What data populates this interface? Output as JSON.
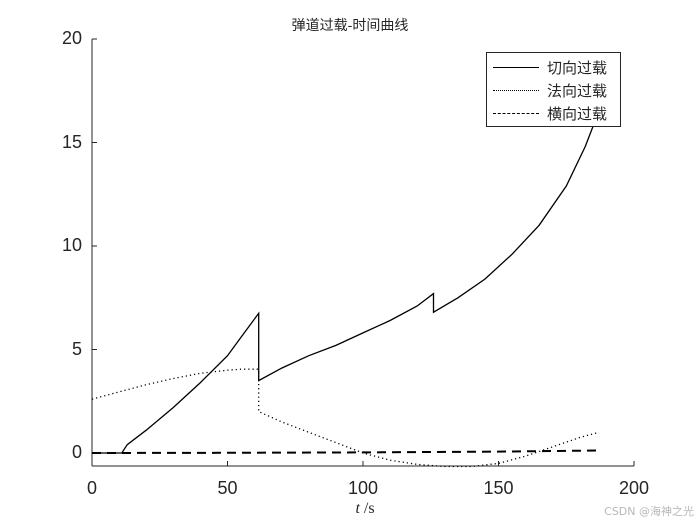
{
  "title": "弹道过载-时间曲线",
  "xlabel": {
    "var": "t",
    "unit": " /s"
  },
  "watermark": "CSDN @海神之光",
  "legend": [
    {
      "label": "切向过载",
      "style": "solid"
    },
    {
      "label": "法向过载",
      "style": "dotted"
    },
    {
      "label": "横向过载",
      "style": "dashed"
    }
  ],
  "axes": {
    "xticks": [
      0,
      50,
      100,
      150,
      200
    ],
    "yticks": [
      0,
      5,
      10,
      15,
      20
    ]
  },
  "chart_data": {
    "type": "line",
    "title": "弹道过载-时间曲线",
    "xlabel": "t /s",
    "ylabel": "",
    "xlim": [
      0,
      200
    ],
    "ylim": [
      -0.6,
      20
    ],
    "grid": false,
    "legend_position": "upper right",
    "series": [
      {
        "name": "切向过载",
        "style": "solid",
        "x": [
          0,
          11,
          13,
          20,
          30,
          40,
          50,
          55,
          61.5,
          61.5,
          70,
          80,
          90,
          100,
          110,
          120,
          126,
          126,
          135,
          145,
          155,
          165,
          175,
          182,
          187
        ],
        "y": [
          0,
          0,
          0.4,
          1.1,
          2.2,
          3.4,
          4.7,
          5.6,
          6.75,
          3.5,
          4.1,
          4.7,
          5.2,
          5.8,
          6.4,
          7.1,
          7.7,
          6.8,
          7.5,
          8.4,
          9.6,
          11.0,
          12.9,
          14.8,
          16.5
        ]
      },
      {
        "name": "法向过载",
        "style": "dotted",
        "x": [
          0,
          10,
          20,
          30,
          40,
          50,
          55,
          61.5,
          61.5,
          70,
          80,
          90,
          100,
          110,
          120,
          130,
          140,
          150,
          160,
          170,
          180,
          187
        ],
        "y": [
          2.6,
          2.95,
          3.3,
          3.6,
          3.85,
          4.0,
          4.05,
          4.05,
          2.0,
          1.5,
          1.0,
          0.5,
          0.0,
          -0.35,
          -0.55,
          -0.65,
          -0.65,
          -0.5,
          -0.15,
          0.3,
          0.75,
          1.0
        ]
      },
      {
        "name": "横向过载",
        "style": "dashed",
        "x": [
          0,
          50,
          100,
          150,
          187
        ],
        "y": [
          0,
          0.01,
          0.03,
          0.07,
          0.12
        ]
      }
    ]
  }
}
